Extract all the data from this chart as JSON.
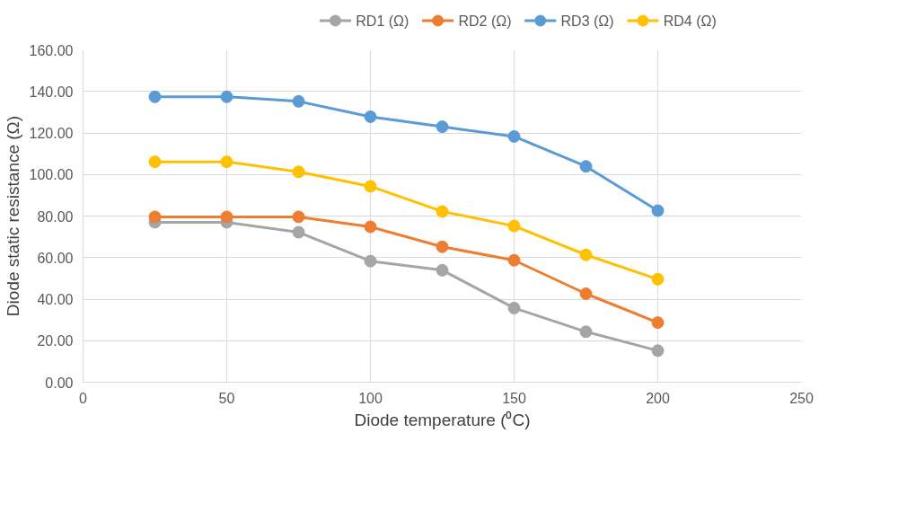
{
  "chart_data": {
    "type": "line",
    "xlabel": "Diode temperature (⁰C)",
    "ylabel": "Diode static resistance (Ω)",
    "x": [
      25,
      50,
      75,
      100,
      125,
      150,
      175,
      200
    ],
    "series": [
      {
        "name": "RD1 (Ω)",
        "color": "#a5a5a5",
        "values": [
          77.0,
          77.0,
          72.2,
          58.3,
          53.9,
          35.7,
          24.3,
          15.2
        ]
      },
      {
        "name": "RD2 (Ω)",
        "color": "#ed7d31",
        "values": [
          79.6,
          79.6,
          79.6,
          74.8,
          65.2,
          58.7,
          42.6,
          28.7
        ]
      },
      {
        "name": "RD3 (Ω)",
        "color": "#5b9bd5",
        "values": [
          137.4,
          137.4,
          135.2,
          127.8,
          123.0,
          118.3,
          103.9,
          82.6
        ]
      },
      {
        "name": "RD4 (Ω)",
        "color": "#ffc000",
        "values": [
          106.1,
          106.1,
          101.3,
          94.3,
          82.2,
          75.2,
          61.3,
          49.6
        ]
      }
    ],
    "xlim": [
      0,
      250
    ],
    "xticks": [
      0,
      50,
      100,
      150,
      200,
      250
    ],
    "ylim": [
      0,
      160
    ],
    "yticks": [
      {
        "value": 0,
        "label": "0.00"
      },
      {
        "value": 20,
        "label": "20.00"
      },
      {
        "value": 40,
        "label": "40.00"
      },
      {
        "value": 60,
        "label": "60.00"
      },
      {
        "value": 80,
        "label": "80.00"
      },
      {
        "value": 100,
        "label": "100.00"
      },
      {
        "value": 120,
        "label": "120.00"
      },
      {
        "value": 140,
        "label": "140.00"
      },
      {
        "value": 160,
        "label": "160.00"
      }
    ],
    "grid": true,
    "legend": "top",
    "marker": "circle",
    "line_style": "solid"
  }
}
